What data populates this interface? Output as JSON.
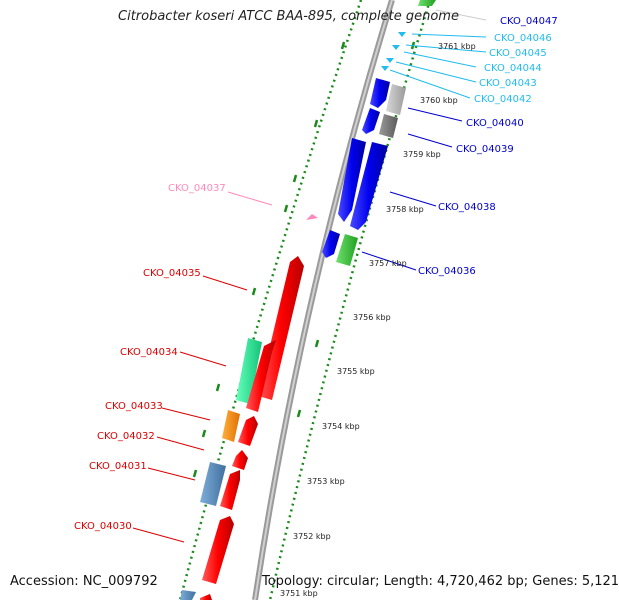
{
  "title": "Citrobacter koseri ATCC BAA-895, complete genome",
  "footer": {
    "accession": "Accession: NC_009792",
    "topology": "Topology: circular; Length: 4,720,462 bp; Genes: 5,121"
  },
  "colors": {
    "forward_cds": "#ff0000",
    "reverse_cds": "#0000ee",
    "reverse_label": "#0000cc",
    "trna_label": "#22bbee",
    "gc_skew": "#1a8a1a"
  },
  "ticks": [
    "3761 kbp",
    "3760 kbp",
    "3759 kbp",
    "3758 kbp",
    "3757 kbp",
    "3756 kbp",
    "3755 kbp",
    "3754 kbp",
    "3753 kbp",
    "3752 kbp",
    "3751 kbp"
  ],
  "genes_right": [
    {
      "name": "CKO_04047",
      "color": "#0000cc"
    },
    {
      "name": "CKO_04046",
      "color": "#22bbee"
    },
    {
      "name": "CKO_04045",
      "color": "#22bbee"
    },
    {
      "name": "CKO_04044",
      "color": "#22bbee"
    },
    {
      "name": "CKO_04043",
      "color": "#22bbee"
    },
    {
      "name": "CKO_04042",
      "color": "#22bbee"
    },
    {
      "name": "CKO_04040",
      "color": "#0000cc"
    },
    {
      "name": "CKO_04039",
      "color": "#0000cc"
    },
    {
      "name": "CKO_04038",
      "color": "#0000cc"
    },
    {
      "name": "CKO_04036",
      "color": "#0000cc"
    }
  ],
  "genes_left": [
    {
      "name": "CKO_04037",
      "color": "#ff88bb"
    },
    {
      "name": "CKO_04035",
      "color": "#dd0000"
    },
    {
      "name": "CKO_04034",
      "color": "#dd0000"
    },
    {
      "name": "CKO_04033",
      "color": "#dd0000"
    },
    {
      "name": "CKO_04032",
      "color": "#dd0000"
    },
    {
      "name": "CKO_04031",
      "color": "#dd0000"
    },
    {
      "name": "CKO_04030",
      "color": "#dd0000"
    }
  ]
}
